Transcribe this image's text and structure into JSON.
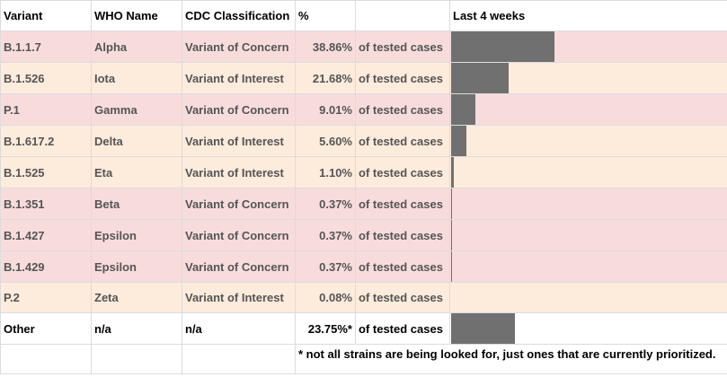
{
  "header": {
    "variant": "Variant",
    "who_name": "WHO Name",
    "cdc": "CDC Classification",
    "percent": "%",
    "unit": "",
    "trend": "Last 4 weeks"
  },
  "rows": [
    {
      "variant": "B.1.1.7",
      "who": "Alpha",
      "cdc": "Variant of Concern",
      "percent": "38.86%",
      "unit": "of tested cases",
      "value": 38.86
    },
    {
      "variant": "B.1.526",
      "who": "Iota",
      "cdc": "Variant of Interest",
      "percent": "21.68%",
      "unit": "of tested cases",
      "value": 21.68
    },
    {
      "variant": "P.1",
      "who": "Gamma",
      "cdc": "Variant of Concern",
      "percent": "9.01%",
      "unit": "of tested cases",
      "value": 9.01
    },
    {
      "variant": "B.1.617.2",
      "who": "Delta",
      "cdc": "Variant of Interest",
      "percent": "5.60%",
      "unit": "of tested cases",
      "value": 5.6
    },
    {
      "variant": "B.1.525",
      "who": "Eta",
      "cdc": "Variant of Interest",
      "percent": "1.10%",
      "unit": "of tested cases",
      "value": 1.1
    },
    {
      "variant": "B.1.351",
      "who": "Beta",
      "cdc": "Variant of Concern",
      "percent": "0.37%",
      "unit": "of tested cases",
      "value": 0.37
    },
    {
      "variant": "B.1.427",
      "who": "Epsilon",
      "cdc": "Variant of Concern",
      "percent": "0.37%",
      "unit": "of tested cases",
      "value": 0.37
    },
    {
      "variant": "B.1.429",
      "who": "Epsilon",
      "cdc": "Variant of Concern",
      "percent": "0.37%",
      "unit": "of tested cases",
      "value": 0.37
    },
    {
      "variant": "P.2",
      "who": "Zeta",
      "cdc": "Variant of Interest",
      "percent": "0.08%",
      "unit": "of tested cases",
      "value": 0.08
    }
  ],
  "other": {
    "variant": "Other",
    "who": "n/a",
    "cdc": "n/a",
    "percent": "23.75%*",
    "unit": "of tested cases",
    "value": 23.75
  },
  "footnote": "* not all strains are being looked for, just ones that are currently prioritized.",
  "colors": {
    "concern_row": "#f8dcdc",
    "interest_row": "#fdebdc",
    "bar": "#707070"
  },
  "scale_max_percent": 100
}
